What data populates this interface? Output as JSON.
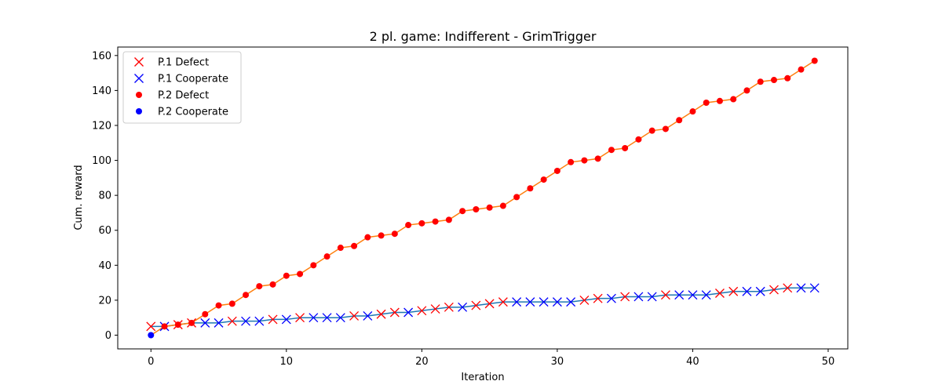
{
  "chart_data": {
    "type": "line",
    "title": "2 pl. game: Indifferent - GrimTrigger",
    "xlabel": "Iteration",
    "ylabel": "Cum. reward",
    "xlim": [
      -2.45,
      51.45
    ],
    "ylim": [
      -7.85,
      164.85
    ],
    "xticks": [
      0,
      10,
      20,
      30,
      40,
      50
    ],
    "yticks": [
      0,
      20,
      40,
      60,
      80,
      100,
      120,
      140,
      160
    ],
    "grid": false,
    "legend_position": "top-left",
    "legend": [
      {
        "label": "P.1 Defect",
        "marker": "x",
        "color": "#ff0000"
      },
      {
        "label": "P.1 Cooperate",
        "marker": "x",
        "color": "#0000ff"
      },
      {
        "label": "P.2 Defect",
        "marker": "dot",
        "color": "#ff0000"
      },
      {
        "label": "P.2 Cooperate",
        "marker": "dot",
        "color": "#0000ff"
      }
    ],
    "line_colors": {
      "p1": "#1f77b4",
      "p2": "#ff7f0e"
    },
    "x": [
      0,
      1,
      2,
      3,
      4,
      5,
      6,
      7,
      8,
      9,
      10,
      11,
      12,
      13,
      14,
      15,
      16,
      17,
      18,
      19,
      20,
      21,
      22,
      23,
      24,
      25,
      26,
      27,
      28,
      29,
      30,
      31,
      32,
      33,
      34,
      35,
      36,
      37,
      38,
      39,
      40,
      41,
      42,
      43,
      44,
      45,
      46,
      47,
      48,
      49
    ],
    "series": [
      {
        "values": [
          5,
          5,
          6,
          7,
          7,
          7,
          8,
          8,
          8,
          9,
          9,
          10,
          10,
          10,
          10,
          11,
          11,
          12,
          13,
          13,
          14,
          15,
          16,
          16,
          17,
          18,
          19,
          19,
          19,
          19,
          19,
          19,
          20,
          21,
          21,
          22,
          22,
          22,
          23,
          23,
          23,
          23,
          24,
          25,
          25,
          25,
          26,
          27,
          27,
          27
        ],
        "actions": [
          "D",
          "C",
          "D",
          "D",
          "C",
          "C",
          "D",
          "C",
          "C",
          "D",
          "C",
          "D",
          "C",
          "C",
          "C",
          "D",
          "C",
          "D",
          "D",
          "C",
          "D",
          "D",
          "D",
          "C",
          "D",
          "D",
          "D",
          "C",
          "C",
          "C",
          "C",
          "C",
          "D",
          "D",
          "C",
          "D",
          "C",
          "C",
          "D",
          "C",
          "C",
          "C",
          "D",
          "D",
          "C",
          "C",
          "D",
          "D",
          "C",
          "C"
        ]
      },
      {
        "values": [
          0,
          5,
          6,
          7,
          12,
          17,
          18,
          23,
          28,
          29,
          34,
          35,
          40,
          45,
          50,
          51,
          56,
          57,
          58,
          63,
          64,
          65,
          66,
          71,
          72,
          73,
          74,
          79,
          84,
          89,
          94,
          99,
          100,
          101,
          106,
          107,
          112,
          117,
          118,
          123,
          128,
          133,
          134,
          135,
          140,
          145,
          146,
          147,
          152,
          157
        ],
        "actions": [
          "C",
          "D",
          "D",
          "D",
          "D",
          "D",
          "D",
          "D",
          "D",
          "D",
          "D",
          "D",
          "D",
          "D",
          "D",
          "D",
          "D",
          "D",
          "D",
          "D",
          "D",
          "D",
          "D",
          "D",
          "D",
          "D",
          "D",
          "D",
          "D",
          "D",
          "D",
          "D",
          "D",
          "D",
          "D",
          "D",
          "D",
          "D",
          "D",
          "D",
          "D",
          "D",
          "D",
          "D",
          "D",
          "D",
          "D",
          "D",
          "D",
          "D"
        ]
      }
    ]
  }
}
